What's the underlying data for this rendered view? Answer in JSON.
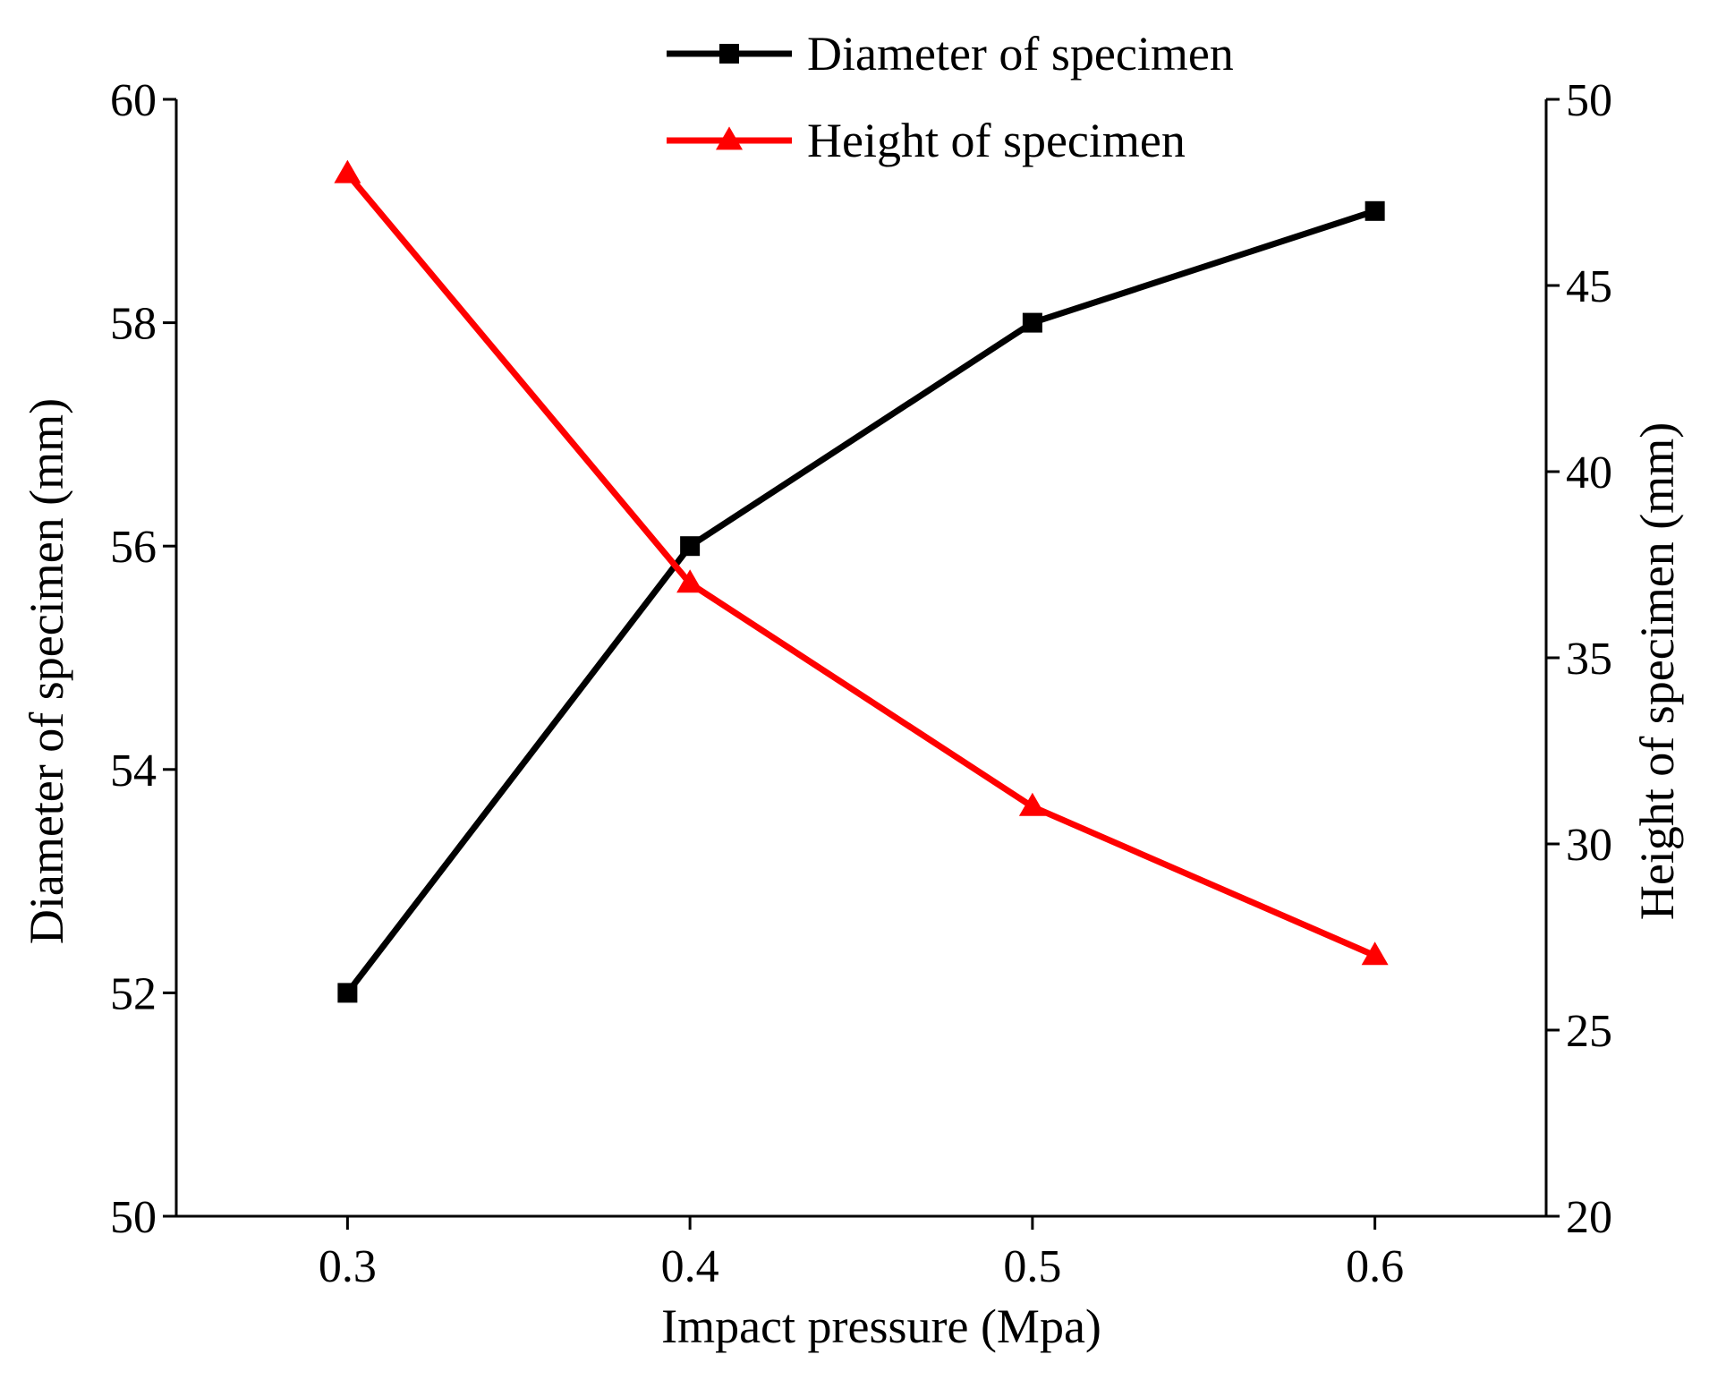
{
  "chart_data": {
    "type": "line",
    "title": "",
    "xlabel": "Impact pressure (Mpa)",
    "ylabel_left": "Diameter of specimen (mm)",
    "ylabel_right": "Height of specimen (mm)",
    "x": [
      0.3,
      0.4,
      0.5,
      0.6
    ],
    "x_ticks": [
      "0.3",
      "0.4",
      "0.5",
      "0.6"
    ],
    "xlim": [
      0.25,
      0.65
    ],
    "ylim_left": [
      50,
      60
    ],
    "ylim_right": [
      20,
      50
    ],
    "yticks_left": [
      "50",
      "52",
      "54",
      "56",
      "58",
      "60"
    ],
    "yticks_right": [
      "20",
      "25",
      "30",
      "35",
      "40",
      "45",
      "50"
    ],
    "grid": false,
    "legend_position": "top-center",
    "series": [
      {
        "name": "Diameter of specimen",
        "axis": "left",
        "color": "#000000",
        "marker": "square",
        "values": [
          52,
          56,
          58,
          59
        ]
      },
      {
        "name": "Height of specimen",
        "axis": "right",
        "color": "#ff0000",
        "marker": "triangle",
        "values": [
          48,
          37,
          31,
          27
        ]
      }
    ]
  }
}
